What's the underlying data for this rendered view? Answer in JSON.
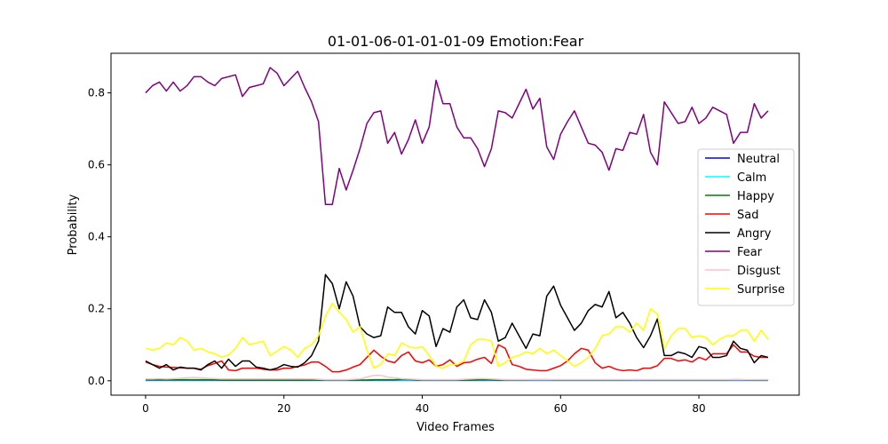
{
  "chart_data": {
    "type": "line",
    "title": "01-01-06-01-01-01-09 Emotion:Fear",
    "xlabel": "Video Frames",
    "ylabel": "Probability",
    "xlim": [
      -5,
      94.5
    ],
    "ylim": [
      -0.04,
      0.91
    ],
    "xticks": [
      0,
      20,
      40,
      60,
      80
    ],
    "yticks": [
      0.0,
      0.2,
      0.4,
      0.6,
      0.8
    ],
    "grid": false,
    "legend_position": "center-right",
    "series": [
      {
        "name": "Neutral",
        "color": "#0000ff",
        "values": [
          0.001,
          0.001,
          0.001,
          0.001,
          0.001,
          0.001,
          0.001,
          0.001,
          0.001,
          0.001,
          0.001,
          0.001,
          0.001,
          0.001,
          0.001,
          0.001,
          0.001,
          0.001,
          0.001,
          0.001,
          0.001,
          0.001,
          0.001,
          0.001,
          0.001,
          0.001,
          0.001,
          0.001,
          0.001,
          0.001,
          0.001,
          0.001,
          0.001,
          0.001,
          0.001,
          0.001,
          0.001,
          0.001,
          0.001,
          0.001,
          0.001,
          0.001,
          0.001,
          0.001,
          0.001,
          0.001,
          0.001,
          0.001,
          0.001,
          0.001,
          0.001,
          0.001,
          0.001,
          0.001,
          0.001,
          0.001,
          0.001,
          0.001,
          0.001,
          0.001,
          0.001,
          0.001,
          0.001,
          0.001,
          0.001,
          0.001,
          0.001,
          0.001,
          0.001,
          0.001,
          0.001,
          0.001,
          0.001,
          0.001,
          0.001,
          0.001,
          0.001,
          0.001,
          0.001,
          0.001,
          0.001,
          0.001,
          0.001,
          0.001,
          0.001,
          0.001,
          0.001,
          0.001,
          0.001,
          0.001,
          0.001
        ]
      },
      {
        "name": "Calm",
        "color": "#00ffff",
        "values": [
          0.002,
          0.002,
          0.002,
          0.002,
          0.002,
          0.002,
          0.002,
          0.002,
          0.002,
          0.002,
          0.002,
          0.002,
          0.002,
          0.002,
          0.002,
          0.002,
          0.002,
          0.002,
          0.002,
          0.002,
          0.002,
          0.002,
          0.002,
          0.002,
          0.002,
          0.002,
          0.002,
          0.002,
          0.002,
          0.002,
          0.002,
          0.002,
          0.002,
          0.002,
          0.002,
          0.002,
          0.002,
          0.002,
          0.002,
          0.002,
          0.002,
          0.002,
          0.002,
          0.002,
          0.002,
          0.002,
          0.002,
          0.002,
          0.002,
          0.002,
          0.002,
          0.002,
          0.002,
          0.002,
          0.002,
          0.002,
          0.002,
          0.002,
          0.002,
          0.002,
          0.002,
          0.002,
          0.002,
          0.002,
          0.002,
          0.002,
          0.002,
          0.002,
          0.002,
          0.002,
          0.002,
          0.002,
          0.002,
          0.002,
          0.002,
          0.002,
          0.002,
          0.002,
          0.002,
          0.002,
          0.002,
          0.002,
          0.002,
          0.002,
          0.002,
          0.002,
          0.002,
          0.002,
          0.002,
          0.002,
          0.002
        ]
      },
      {
        "name": "Happy",
        "color": "#008000",
        "values": [
          0.003,
          0.003,
          0.003,
          0.003,
          0.003,
          0.003,
          0.003,
          0.003,
          0.003,
          0.003,
          0.003,
          0.002,
          0.002,
          0.002,
          0.002,
          0.002,
          0.002,
          0.002,
          0.002,
          0.002,
          0.002,
          0.002,
          0.002,
          0.002,
          0.002,
          0.002,
          0.002,
          0.002,
          0.002,
          0.002,
          0.002,
          0.002,
          0.002,
          0.003,
          0.003,
          0.003,
          0.003,
          0.004,
          0.004,
          0.003,
          0.002,
          0.002,
          0.002,
          0.002,
          0.002,
          0.002,
          0.002,
          0.002,
          0.003,
          0.003,
          0.003,
          0.002,
          0.002,
          0.002,
          0.002,
          0.002,
          0.003,
          0.003,
          0.003,
          0.002,
          0.002,
          0.002,
          0.002,
          0.002,
          0.002,
          0.002,
          0.002,
          0.002,
          0.002,
          0.002,
          0.002,
          0.003,
          0.002,
          0.002,
          0.002,
          0.002,
          0.002,
          0.002,
          0.002,
          0.002,
          0.002,
          0.002,
          0.002,
          0.002,
          0.002,
          0.003,
          0.003,
          0.002,
          0.002,
          0.002,
          0.002
        ]
      },
      {
        "name": "Sad",
        "color": "#ff0000",
        "values": [
          0.052,
          0.045,
          0.04,
          0.038,
          0.037,
          0.036,
          0.035,
          0.035,
          0.032,
          0.042,
          0.048,
          0.055,
          0.03,
          0.028,
          0.035,
          0.035,
          0.035,
          0.032,
          0.03,
          0.03,
          0.035,
          0.035,
          0.04,
          0.044,
          0.052,
          0.052,
          0.04,
          0.025,
          0.025,
          0.03,
          0.038,
          0.045,
          0.065,
          0.085,
          0.068,
          0.055,
          0.05,
          0.07,
          0.08,
          0.055,
          0.05,
          0.058,
          0.04,
          0.045,
          0.058,
          0.04,
          0.05,
          0.052,
          0.06,
          0.065,
          0.048,
          0.1,
          0.09,
          0.045,
          0.04,
          0.032,
          0.03,
          0.028,
          0.028,
          0.035,
          0.042,
          0.055,
          0.075,
          0.09,
          0.085,
          0.05,
          0.035,
          0.04,
          0.032,
          0.028,
          0.03,
          0.028,
          0.035,
          0.035,
          0.042,
          0.062,
          0.062,
          0.055,
          0.058,
          0.052,
          0.065,
          0.058,
          0.075,
          0.075,
          0.075,
          0.1,
          0.08,
          0.08,
          0.068,
          0.065,
          0.065
        ]
      },
      {
        "name": "Angry",
        "color": "#000000",
        "values": [
          0.055,
          0.045,
          0.035,
          0.045,
          0.03,
          0.038,
          0.035,
          0.035,
          0.03,
          0.045,
          0.055,
          0.035,
          0.06,
          0.04,
          0.055,
          0.055,
          0.038,
          0.035,
          0.03,
          0.035,
          0.045,
          0.04,
          0.038,
          0.05,
          0.07,
          0.11,
          0.295,
          0.27,
          0.2,
          0.275,
          0.235,
          0.15,
          0.13,
          0.12,
          0.125,
          0.205,
          0.19,
          0.19,
          0.15,
          0.13,
          0.195,
          0.18,
          0.095,
          0.145,
          0.135,
          0.205,
          0.225,
          0.175,
          0.17,
          0.225,
          0.19,
          0.11,
          0.12,
          0.16,
          0.125,
          0.09,
          0.13,
          0.125,
          0.235,
          0.263,
          0.21,
          0.175,
          0.14,
          0.16,
          0.195,
          0.212,
          0.205,
          0.248,
          0.175,
          0.19,
          0.16,
          0.12,
          0.092,
          0.125,
          0.172,
          0.07,
          0.07,
          0.08,
          0.075,
          0.065,
          0.095,
          0.09,
          0.065,
          0.065,
          0.07,
          0.11,
          0.09,
          0.085,
          0.05,
          0.07,
          0.065
        ]
      },
      {
        "name": "Fear",
        "color": "#800080",
        "values": [
          0.8,
          0.82,
          0.83,
          0.805,
          0.83,
          0.805,
          0.82,
          0.845,
          0.845,
          0.83,
          0.82,
          0.84,
          0.845,
          0.85,
          0.79,
          0.815,
          0.82,
          0.825,
          0.87,
          0.855,
          0.82,
          0.84,
          0.86,
          0.815,
          0.775,
          0.72,
          0.49,
          0.49,
          0.59,
          0.53,
          0.585,
          0.645,
          0.715,
          0.745,
          0.75,
          0.66,
          0.69,
          0.63,
          0.67,
          0.725,
          0.66,
          0.705,
          0.835,
          0.77,
          0.77,
          0.705,
          0.675,
          0.675,
          0.645,
          0.595,
          0.645,
          0.75,
          0.745,
          0.73,
          0.77,
          0.81,
          0.755,
          0.785,
          0.65,
          0.615,
          0.685,
          0.72,
          0.75,
          0.705,
          0.66,
          0.655,
          0.635,
          0.585,
          0.645,
          0.64,
          0.69,
          0.685,
          0.74,
          0.635,
          0.6,
          0.775,
          0.745,
          0.715,
          0.72,
          0.76,
          0.715,
          0.73,
          0.76,
          0.75,
          0.74,
          0.66,
          0.69,
          0.69,
          0.77,
          0.73,
          0.75
        ]
      },
      {
        "name": "Disgust",
        "color": "#ffc0cb",
        "values": [
          0.005,
          0.005,
          0.006,
          0.005,
          0.006,
          0.007,
          0.008,
          0.009,
          0.008,
          0.007,
          0.006,
          0.005,
          0.005,
          0.005,
          0.005,
          0.005,
          0.005,
          0.005,
          0.005,
          0.005,
          0.005,
          0.005,
          0.005,
          0.005,
          0.005,
          0.004,
          0.003,
          0.003,
          0.003,
          0.003,
          0.004,
          0.005,
          0.01,
          0.015,
          0.015,
          0.01,
          0.008,
          0.006,
          0.005,
          0.004,
          0.003,
          0.003,
          0.003,
          0.003,
          0.003,
          0.003,
          0.004,
          0.005,
          0.006,
          0.006,
          0.005,
          0.004,
          0.003,
          0.003,
          0.003,
          0.003,
          0.003,
          0.003,
          0.003,
          0.003,
          0.003,
          0.003,
          0.003,
          0.003,
          0.003,
          0.003,
          0.003,
          0.003,
          0.003,
          0.003,
          0.003,
          0.003,
          0.003,
          0.003,
          0.003,
          0.003,
          0.003,
          0.003,
          0.003,
          0.003,
          0.003,
          0.003,
          0.003,
          0.003,
          0.003,
          0.003,
          0.003,
          0.003,
          0.003,
          0.003,
          0.003
        ]
      },
      {
        "name": "Surprise",
        "color": "#ffff00",
        "values": [
          0.09,
          0.085,
          0.09,
          0.105,
          0.1,
          0.12,
          0.11,
          0.085,
          0.09,
          0.08,
          0.075,
          0.065,
          0.072,
          0.09,
          0.12,
          0.1,
          0.105,
          0.11,
          0.07,
          0.082,
          0.095,
          0.085,
          0.065,
          0.09,
          0.1,
          0.125,
          0.18,
          0.215,
          0.19,
          0.17,
          0.135,
          0.15,
          0.085,
          0.035,
          0.045,
          0.075,
          0.07,
          0.105,
          0.095,
          0.09,
          0.095,
          0.07,
          0.04,
          0.035,
          0.045,
          0.045,
          0.055,
          0.1,
          0.115,
          0.115,
          0.11,
          0.04,
          0.05,
          0.065,
          0.07,
          0.08,
          0.075,
          0.09,
          0.075,
          0.085,
          0.07,
          0.055,
          0.04,
          0.05,
          0.065,
          0.09,
          0.125,
          0.13,
          0.15,
          0.15,
          0.135,
          0.16,
          0.14,
          0.2,
          0.185,
          0.09,
          0.125,
          0.145,
          0.145,
          0.12,
          0.125,
          0.12,
          0.1,
          0.115,
          0.125,
          0.125,
          0.14,
          0.14,
          0.11,
          0.14,
          0.115
        ]
      }
    ]
  }
}
